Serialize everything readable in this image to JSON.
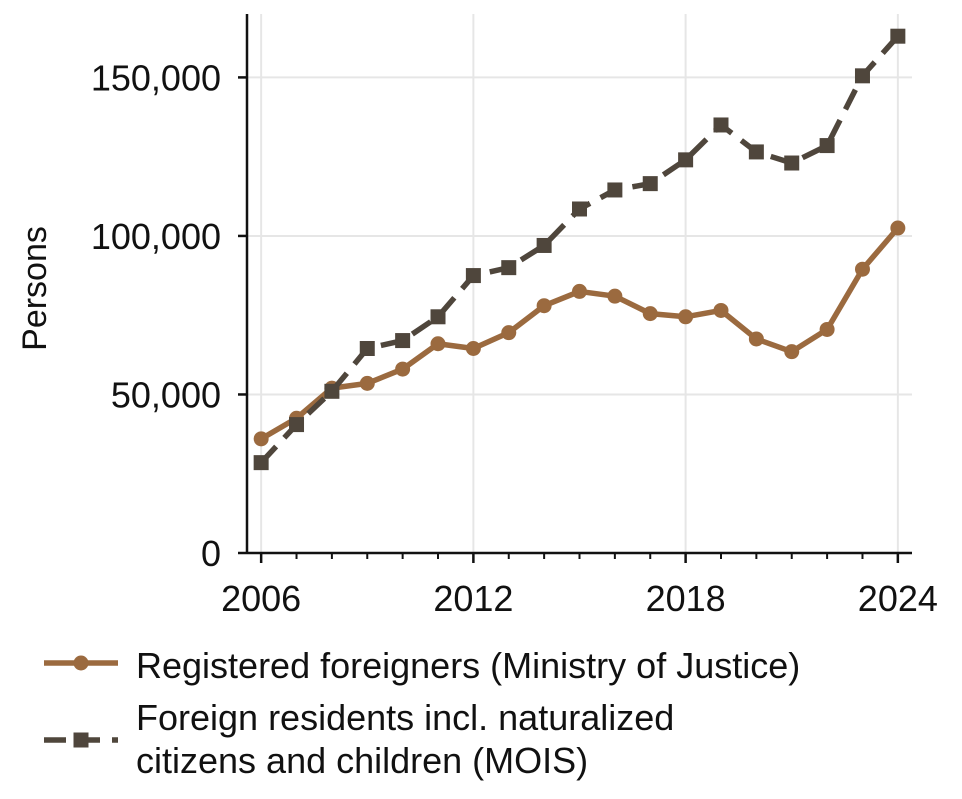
{
  "chart_data": {
    "type": "line",
    "title": "",
    "xlabel": "",
    "ylabel": "Persons",
    "x": [
      2006,
      2007,
      2008,
      2009,
      2010,
      2011,
      2012,
      2013,
      2014,
      2015,
      2016,
      2017,
      2018,
      2019,
      2020,
      2021,
      2022,
      2023,
      2024
    ],
    "xlim": [
      2005.6,
      2024.4
    ],
    "ylim": [
      0,
      170000
    ],
    "x_ticks": [
      2006,
      2012,
      2018,
      2024
    ],
    "x_tick_labels": [
      "2006",
      "2012",
      "2018",
      "2024"
    ],
    "y_ticks": [
      0,
      50000,
      100000,
      150000
    ],
    "y_tick_labels": [
      "0",
      "50,000",
      "100,000",
      "150,000"
    ],
    "grid": true,
    "legend_position": "bottom",
    "series": [
      {
        "name": "Registered foreigners (Ministry of Justice)",
        "color": "#9b6a3f",
        "line_style": "solid",
        "marker": "circle",
        "values": [
          36000,
          42500,
          52000,
          53500,
          58000,
          66000,
          64500,
          69500,
          78000,
          82500,
          81000,
          75500,
          74500,
          76500,
          67500,
          63500,
          70500,
          89500,
          102500
        ]
      },
      {
        "name": "Foreign residents incl. naturalized citizens and children (MOIS)",
        "legend_lines": [
          "Foreign residents incl. naturalized",
          "citizens and children (MOIS)"
        ],
        "color": "#4f463c",
        "line_style": "dashed",
        "marker": "square",
        "values": [
          28500,
          40500,
          51000,
          64500,
          67000,
          74500,
          87500,
          90000,
          97000,
          108500,
          114500,
          116500,
          124000,
          135000,
          126500,
          123000,
          128500,
          150500,
          163000
        ]
      }
    ]
  }
}
